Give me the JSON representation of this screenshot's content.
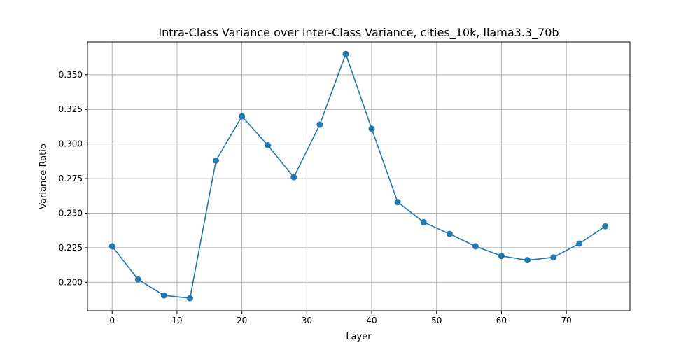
{
  "chart_data": {
    "type": "line",
    "title": "Intra-Class Variance over Inter-Class Variance, cities_10k, llama3.3_70b",
    "xlabel": "Layer",
    "ylabel": "Variance Ratio",
    "xlim": [
      -3.8,
      79.8
    ],
    "ylim": [
      0.1794,
      0.3737
    ],
    "xticks": [
      0,
      10,
      20,
      30,
      40,
      50,
      60,
      70
    ],
    "yticks": [
      0.2,
      0.225,
      0.25,
      0.275,
      0.3,
      0.325,
      0.35
    ],
    "ytick_labels": [
      "0.200",
      "0.225",
      "0.250",
      "0.275",
      "0.300",
      "0.325",
      "0.350"
    ],
    "grid": true,
    "color": "#1f77b4",
    "series": [
      {
        "x": [
          0,
          4,
          8,
          12,
          16,
          20,
          24,
          28,
          32,
          36,
          40,
          44,
          48,
          52,
          56,
          60,
          64,
          68,
          72,
          76
        ],
        "y": [
          0.226,
          0.202,
          0.1905,
          0.1885,
          0.288,
          0.32,
          0.299,
          0.276,
          0.314,
          0.365,
          0.311,
          0.258,
          0.2435,
          0.235,
          0.226,
          0.219,
          0.216,
          0.218,
          0.228,
          0.2405
        ]
      }
    ]
  }
}
